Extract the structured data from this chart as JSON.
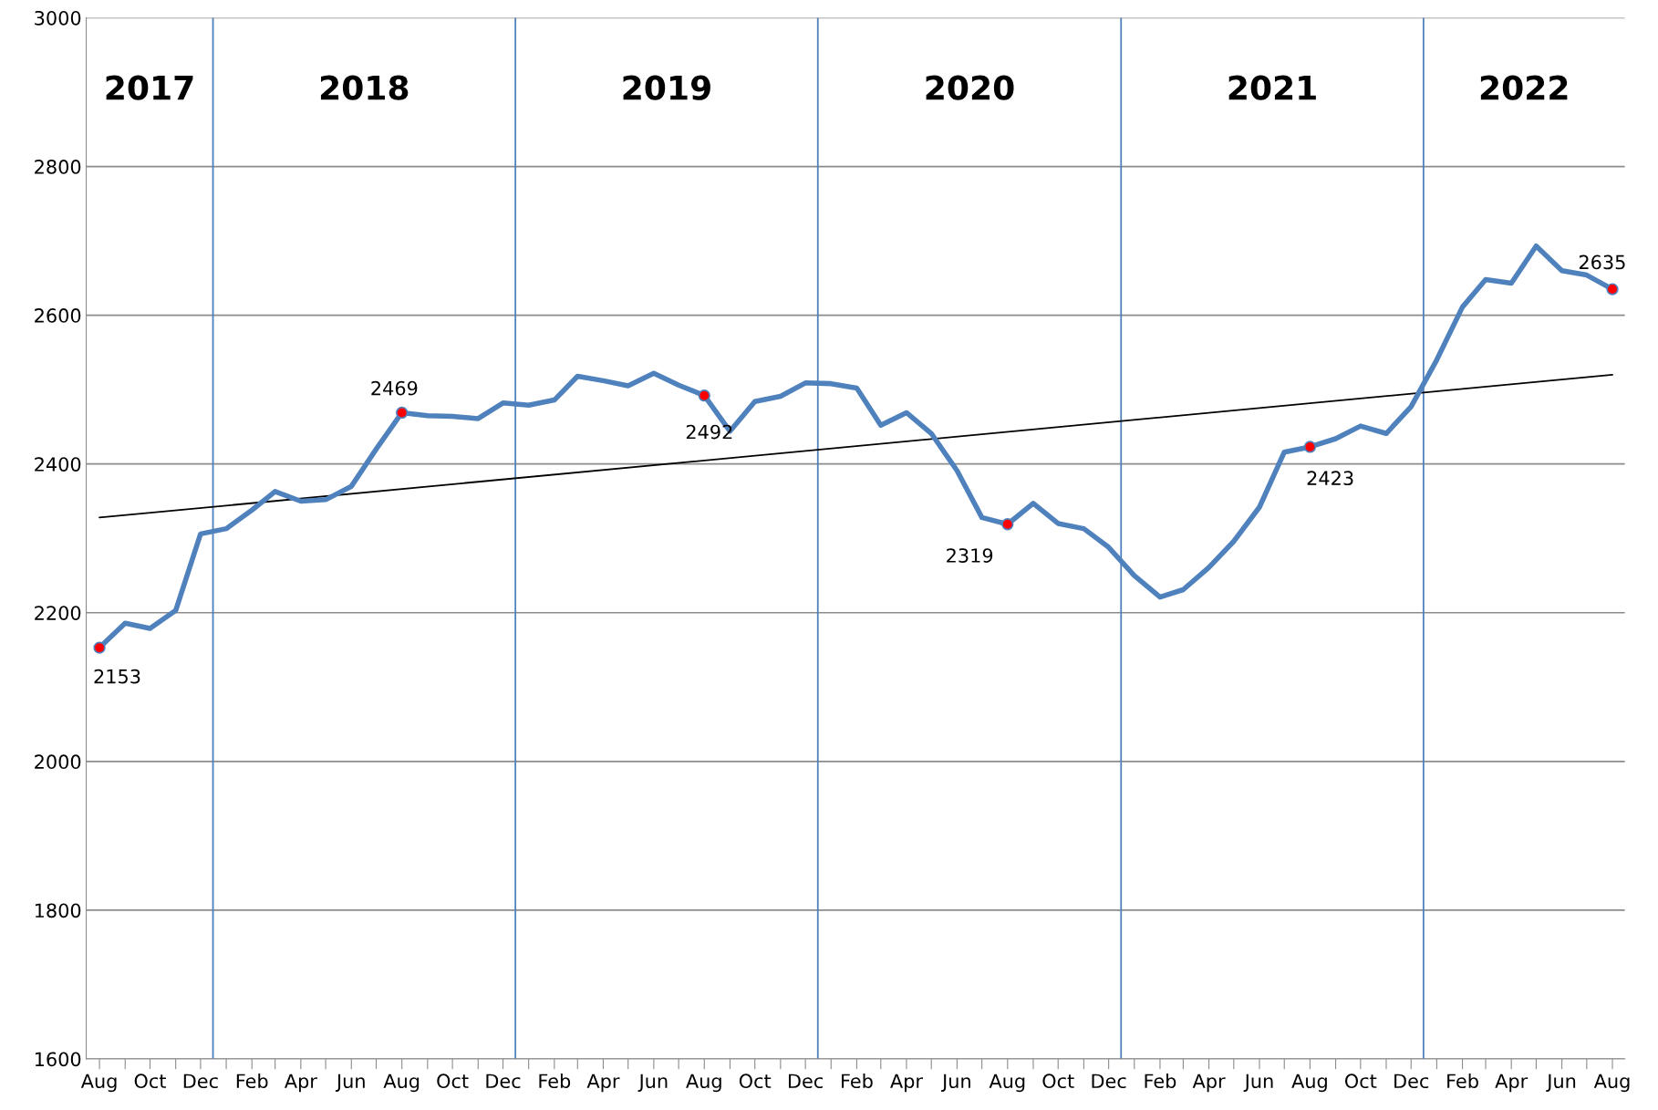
{
  "chart_data": {
    "type": "line",
    "x": [
      "2017-08",
      "2017-09",
      "2017-10",
      "2017-11",
      "2017-12",
      "2018-01",
      "2018-02",
      "2018-03",
      "2018-04",
      "2018-05",
      "2018-06",
      "2018-07",
      "2018-08",
      "2018-09",
      "2018-10",
      "2018-11",
      "2018-12",
      "2019-01",
      "2019-02",
      "2019-03",
      "2019-04",
      "2019-05",
      "2019-06",
      "2019-07",
      "2019-08",
      "2019-09",
      "2019-10",
      "2019-11",
      "2019-12",
      "2020-01",
      "2020-02",
      "2020-03",
      "2020-04",
      "2020-05",
      "2020-06",
      "2020-07",
      "2020-08",
      "2020-09",
      "2020-10",
      "2020-11",
      "2020-12",
      "2021-01",
      "2021-02",
      "2021-03",
      "2021-04",
      "2021-05",
      "2021-06",
      "2021-07",
      "2021-08",
      "2021-09",
      "2021-10",
      "2021-11",
      "2021-12",
      "2022-01",
      "2022-02",
      "2022-03",
      "2022-04",
      "2022-05",
      "2022-06",
      "2022-07",
      "2022-08"
    ],
    "series": [
      {
        "color": "#4f81bd",
        "values": [
          2153,
          2186,
          2179,
          2203,
          2306,
          2313,
          2338,
          2363,
          2350,
          2352,
          2370,
          2420,
          2469,
          2465,
          2464,
          2461,
          2482,
          2479,
          2486,
          2518,
          2512,
          2505,
          2522,
          2506,
          2492,
          2444,
          2484,
          2491,
          2509,
          2508,
          2502,
          2452,
          2469,
          2441,
          2391,
          2328,
          2319,
          2347,
          2320,
          2313,
          2288,
          2250,
          2221,
          2231,
          2261,
          2296,
          2342,
          2416,
          2423,
          2434,
          2451,
          2441,
          2477,
          2540,
          2611,
          2648,
          2643,
          2693,
          2660,
          2654,
          2635
        ]
      },
      {
        "type": "scatter",
        "color": "#ff0000",
        "marker": "circle",
        "x": [
          "2017-08",
          "2018-08",
          "2019-08",
          "2020-08",
          "2021-08",
          "2022-08"
        ],
        "values": [
          2153,
          2469,
          2492,
          2319,
          2423,
          2635
        ],
        "value_labels": [
          "2153",
          "2469",
          "2492",
          "2319",
          "2423",
          "2635"
        ]
      },
      {
        "type": "line",
        "color": "#000000",
        "x": [
          "2017-08",
          "2022-08"
        ],
        "values": [
          2328,
          2520
        ]
      }
    ],
    "xlim": [
      "2017-07-16",
      "2022-08-16"
    ],
    "xticks": [
      {
        "value": "2017-08",
        "label": "Aug"
      },
      {
        "value": "2017-09",
        "label": null
      },
      {
        "value": "2017-10",
        "label": "Oct"
      },
      {
        "value": "2017-11",
        "label": null
      },
      {
        "value": "2017-12",
        "label": "Dec"
      },
      {
        "value": "2018-01",
        "label": null
      },
      {
        "value": "2018-02",
        "label": "Feb"
      },
      {
        "value": "2018-03",
        "label": null
      },
      {
        "value": "2018-04",
        "label": "Apr"
      },
      {
        "value": "2018-05",
        "label": null
      },
      {
        "value": "2018-06",
        "label": "Jun"
      },
      {
        "value": "2018-07",
        "label": null
      },
      {
        "value": "2018-08",
        "label": "Aug"
      },
      {
        "value": "2018-09",
        "label": null
      },
      {
        "value": "2018-10",
        "label": "Oct"
      },
      {
        "value": "2018-11",
        "label": null
      },
      {
        "value": "2018-12",
        "label": "Dec"
      },
      {
        "value": "2019-01",
        "label": null
      },
      {
        "value": "2019-02",
        "label": "Feb"
      },
      {
        "value": "2019-03",
        "label": null
      },
      {
        "value": "2019-04",
        "label": "Apr"
      },
      {
        "value": "2019-05",
        "label": null
      },
      {
        "value": "2019-06",
        "label": "Jun"
      },
      {
        "value": "2019-07",
        "label": null
      },
      {
        "value": "2019-08",
        "label": "Aug"
      },
      {
        "value": "2019-09",
        "label": null
      },
      {
        "value": "2019-10",
        "label": "Oct"
      },
      {
        "value": "2019-11",
        "label": null
      },
      {
        "value": "2019-12",
        "label": "Dec"
      },
      {
        "value": "2020-01",
        "label": null
      },
      {
        "value": "2020-02",
        "label": "Feb"
      },
      {
        "value": "2020-03",
        "label": null
      },
      {
        "value": "2020-04",
        "label": "Apr"
      },
      {
        "value": "2020-05",
        "label": null
      },
      {
        "value": "2020-06",
        "label": "Jun"
      },
      {
        "value": "2020-07",
        "label": null
      },
      {
        "value": "2020-08",
        "label": "Aug"
      },
      {
        "value": "2020-09",
        "label": null
      },
      {
        "value": "2020-10",
        "label": "Oct"
      },
      {
        "value": "2020-11",
        "label": null
      },
      {
        "value": "2020-12",
        "label": "Dec"
      },
      {
        "value": "2021-01",
        "label": null
      },
      {
        "value": "2021-02",
        "label": "Feb"
      },
      {
        "value": "2021-03",
        "label": null
      },
      {
        "value": "2021-04",
        "label": "Apr"
      },
      {
        "value": "2021-05",
        "label": null
      },
      {
        "value": "2021-06",
        "label": "Jun"
      },
      {
        "value": "2021-07",
        "label": null
      },
      {
        "value": "2021-08",
        "label": "Aug"
      },
      {
        "value": "2021-09",
        "label": null
      },
      {
        "value": "2021-10",
        "label": "Oct"
      },
      {
        "value": "2021-11",
        "label": null
      },
      {
        "value": "2021-12",
        "label": "Dec"
      },
      {
        "value": "2022-01",
        "label": null
      },
      {
        "value": "2022-02",
        "label": "Feb"
      },
      {
        "value": "2022-03",
        "label": null
      },
      {
        "value": "2022-04",
        "label": "Apr"
      },
      {
        "value": "2022-05",
        "label": null
      },
      {
        "value": "2022-06",
        "label": "Jun"
      },
      {
        "value": "2022-07",
        "label": null
      },
      {
        "value": "2022-08",
        "label": "Aug"
      }
    ],
    "ylim": [
      1600,
      3000
    ],
    "yticks": [
      1600,
      1800,
      2000,
      2200,
      2400,
      2600,
      2800,
      3000
    ],
    "grid": "y",
    "marker": "none",
    "line_style": "solid",
    "ref_lines": [
      {
        "axis": "x",
        "value": "2017-12-16",
        "color": "#4f81bd"
      },
      {
        "axis": "x",
        "value": "2018-12-16",
        "color": "#4f81bd"
      },
      {
        "axis": "x",
        "value": "2019-12-16",
        "color": "#4f81bd"
      },
      {
        "axis": "x",
        "value": "2020-12-16",
        "color": "#4f81bd"
      },
      {
        "axis": "x",
        "value": "2021-12-16",
        "color": "#4f81bd"
      }
    ],
    "annotations": [
      "2017",
      "2018",
      "2019",
      "2020",
      "2021",
      "2022"
    ]
  }
}
